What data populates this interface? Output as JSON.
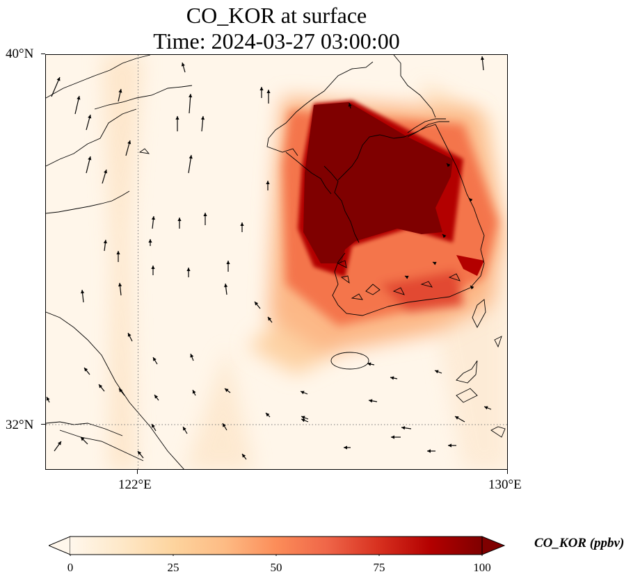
{
  "title": {
    "line1": "CO_KOR at surface",
    "line2": "Time: 2024-03-27 03:00:00"
  },
  "map": {
    "variable": "CO_KOR",
    "level": "surface",
    "extent": {
      "lon_min": 120,
      "lon_max": 130,
      "lat_min": 31,
      "lat_max": 40
    },
    "lat_labels": [
      "40°N",
      "32°N"
    ],
    "lon_labels": [
      "122°E",
      "130°E"
    ],
    "gridlines": {
      "lon": 122,
      "lat": 32,
      "style": "dotted"
    },
    "colormap": "OrRd",
    "features": [
      "coastlines",
      "wind-vectors"
    ]
  },
  "colorbar": {
    "label": "CO_KOR (ppbv)",
    "ticks": [
      "0",
      "25",
      "50",
      "75",
      "100"
    ],
    "min": 0,
    "max": 100,
    "extend": "both"
  }
}
